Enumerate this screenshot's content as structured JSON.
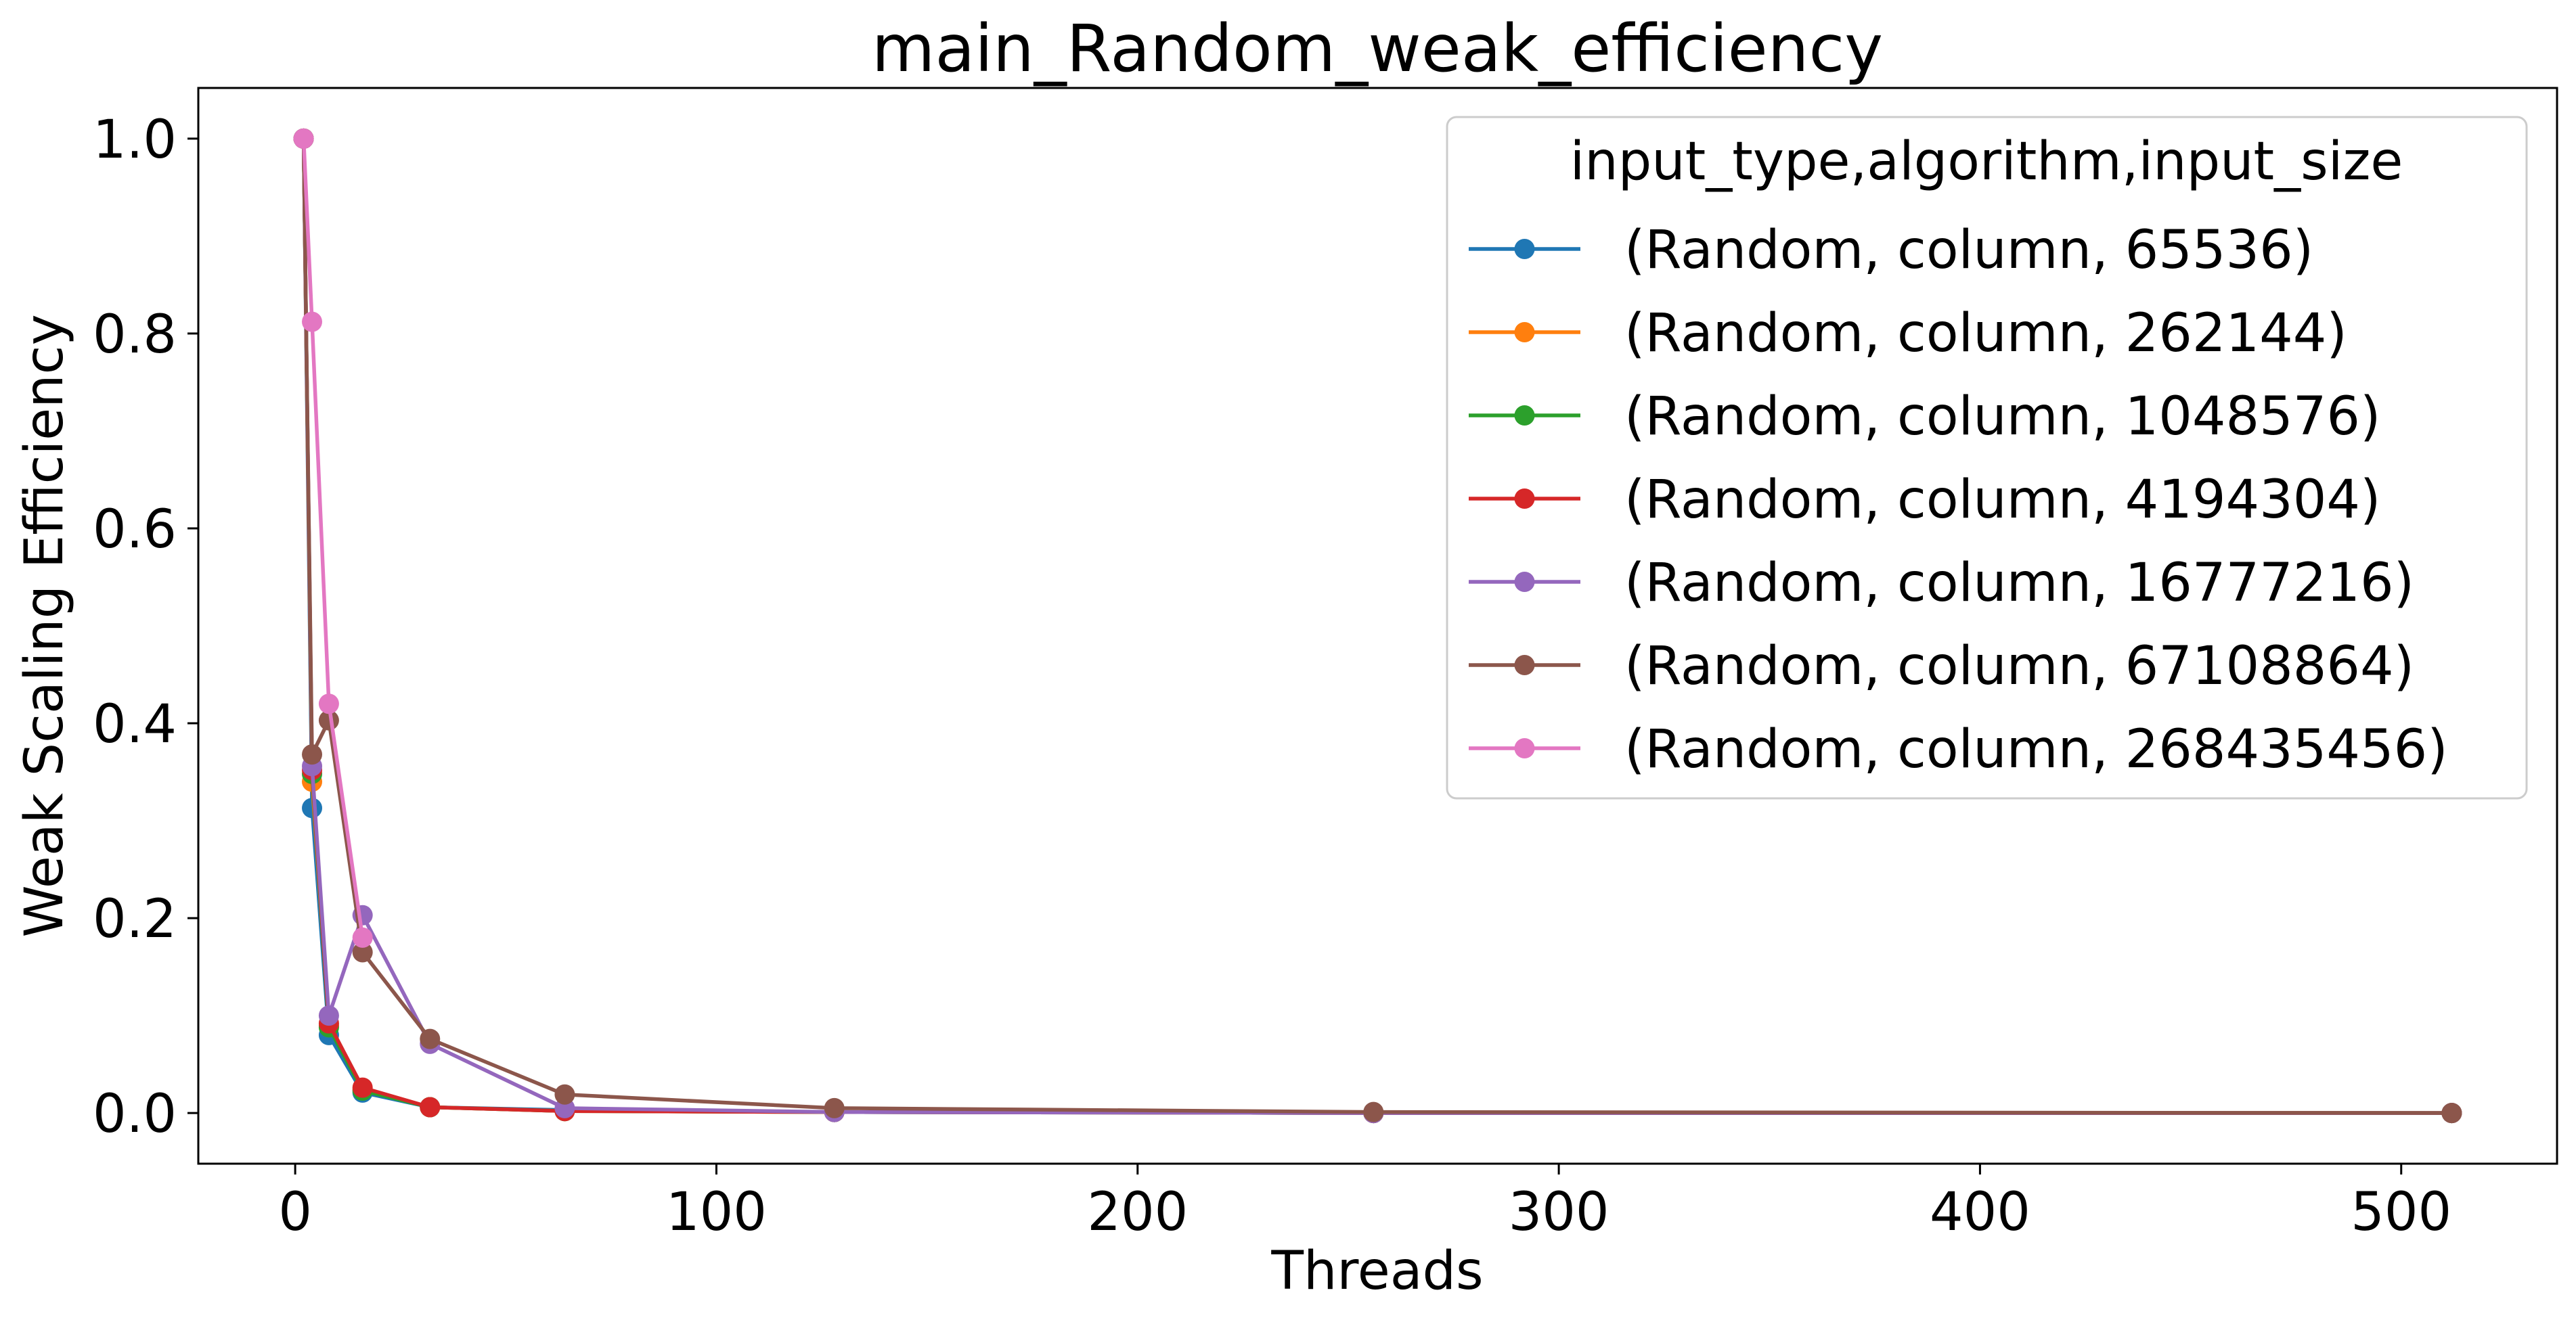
{
  "chart_data": {
    "type": "line",
    "title": "main_Random_weak_efficiency",
    "xlabel": "Threads",
    "ylabel": "Weak Scaling Efficiency",
    "xlim": [
      -23,
      537
    ],
    "ylim": [
      -0.052,
      1.052
    ],
    "xticks": [
      0,
      100,
      200,
      300,
      400,
      500
    ],
    "yticks": [
      0.0,
      0.2,
      0.4,
      0.6,
      0.8,
      1.0
    ],
    "xtick_labels": [
      "0",
      "100",
      "200",
      "300",
      "400",
      "500"
    ],
    "ytick_labels": [
      "0.0",
      "0.2",
      "0.4",
      "0.6",
      "0.8",
      "1.0"
    ],
    "grid": false,
    "legend": {
      "title": "input_type,algorithm,input_size",
      "placement": "top-right"
    },
    "x": [
      2,
      4,
      8,
      16,
      32,
      64,
      128,
      256,
      512
    ],
    "series": [
      {
        "name": "(Random, column, 65536)",
        "color": "#1f77b4",
        "values": [
          1.0,
          0.313,
          0.08,
          0.021,
          0.006,
          0.003,
          0.001,
          0.0,
          0.0
        ]
      },
      {
        "name": "(Random, column, 262144)",
        "color": "#ff7f0e",
        "values": [
          1.0,
          0.34,
          0.09,
          0.024,
          0.006,
          0.002,
          0.001,
          0.0,
          0.0
        ]
      },
      {
        "name": "(Random, column, 1048576)",
        "color": "#2ca02c",
        "values": [
          1.0,
          0.348,
          0.088,
          0.023,
          0.006,
          0.002,
          0.001,
          0.0,
          0.0
        ]
      },
      {
        "name": "(Random, column, 4194304)",
        "color": "#d62728",
        "values": [
          1.0,
          0.352,
          0.092,
          0.026,
          0.006,
          0.002,
          0.001,
          0.0,
          0.0
        ]
      },
      {
        "name": "(Random, column, 16777216)",
        "color": "#9467bd",
        "values": [
          1.0,
          0.356,
          0.1,
          0.203,
          0.071,
          0.005,
          0.001,
          0.0,
          0.0
        ]
      },
      {
        "name": "(Random, column, 67108864)",
        "color": "#8c564b",
        "values": [
          1.0,
          0.368,
          0.403,
          0.165,
          0.076,
          0.019,
          0.005,
          0.001,
          0.0
        ]
      },
      {
        "name": "(Random, column, 268435456)",
        "color": "#e377c2",
        "values": [
          1.0,
          0.812,
          0.42,
          0.18,
          null,
          null,
          null,
          null,
          null
        ]
      }
    ]
  }
}
